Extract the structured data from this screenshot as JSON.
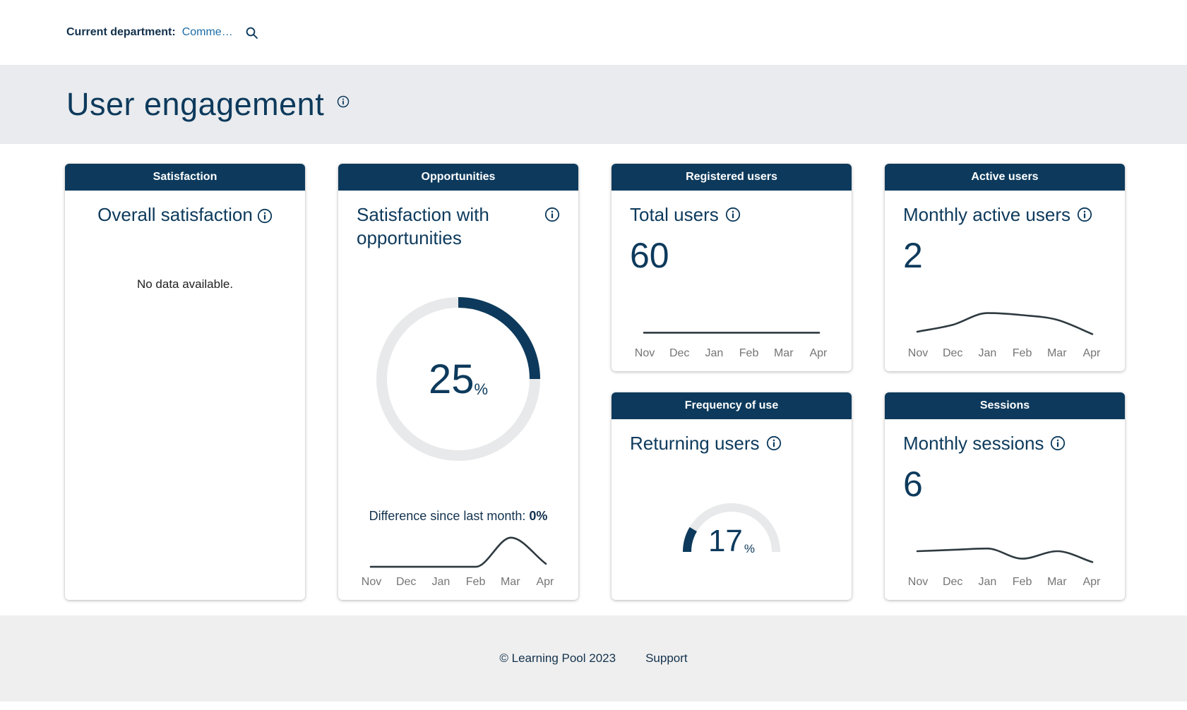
{
  "topbar": {
    "label": "Current department:",
    "department": "Comme…"
  },
  "header": {
    "title": "User engagement"
  },
  "months": [
    "Nov",
    "Dec",
    "Jan",
    "Feb",
    "Mar",
    "Apr"
  ],
  "cards": {
    "satisfaction": {
      "header": "Satisfaction",
      "title": "Overall satisfaction",
      "empty_message": "No data available."
    },
    "opportunities": {
      "header": "Opportunities",
      "title": "Satisfaction with opportunities",
      "value": "25",
      "unit": "%",
      "difference_label": "Difference since last month:",
      "difference_value": "0%"
    },
    "registered": {
      "header": "Registered users",
      "title": "Total users",
      "value": "60"
    },
    "active": {
      "header": "Active users",
      "title": "Monthly active users",
      "value": "2"
    },
    "frequency": {
      "header": "Frequency of use",
      "title": "Returning users",
      "value": "17",
      "unit": "%"
    },
    "sessions": {
      "header": "Sessions",
      "title": "Monthly sessions",
      "value": "6"
    }
  },
  "footer": {
    "copyright": "© Learning Pool 2023",
    "support": "Support"
  },
  "colors": {
    "navy": "#0d3a5c",
    "link_blue": "#1b6ca8",
    "hero_grey": "#e9ebee",
    "footer_grey": "#efefef",
    "month_grey": "#757575",
    "spark_line": "#2e3a40",
    "track_grey": "#e8e9ea"
  },
  "chart_data": [
    {
      "id": "opportunities_donut",
      "type": "pie",
      "subtype": "donut",
      "title": "Satisfaction with opportunities",
      "value_pct": 25,
      "annotation": "Difference since last month: 0%"
    },
    {
      "id": "opportunities_trend",
      "type": "line",
      "x": [
        "Nov",
        "Dec",
        "Jan",
        "Feb",
        "Mar",
        "Apr"
      ],
      "values_relative": [
        0.06,
        0.06,
        0.06,
        0.06,
        0.92,
        0.15
      ],
      "note": "sparkline, no y-axis shown; flat Nov-Feb, peak at Mar, drop to Apr"
    },
    {
      "id": "registered_trend",
      "type": "line",
      "x": [
        "Nov",
        "Dec",
        "Jan",
        "Feb",
        "Mar",
        "Apr"
      ],
      "values": [
        60,
        60,
        60,
        60,
        60,
        60
      ],
      "values_relative": [
        0.22,
        0.22,
        0.22,
        0.22,
        0.22,
        0.22
      ],
      "note": "flat line, total users constant at 60"
    },
    {
      "id": "active_trend",
      "type": "line",
      "x": [
        "Nov",
        "Dec",
        "Jan",
        "Feb",
        "Mar",
        "Apr"
      ],
      "values_relative": [
        0.25,
        0.45,
        0.8,
        0.74,
        0.6,
        0.18
      ],
      "note": "sparkline, no y-axis shown; rises to Jan peak then declines"
    },
    {
      "id": "frequency_gauge",
      "type": "gauge",
      "title": "Returning users",
      "value_pct": 17,
      "range": [
        0,
        100
      ]
    },
    {
      "id": "sessions_trend",
      "type": "line",
      "x": [
        "Nov",
        "Dec",
        "Jan",
        "Feb",
        "Mar",
        "Apr"
      ],
      "values_relative": [
        0.52,
        0.56,
        0.6,
        0.3,
        0.52,
        0.2
      ],
      "note": "sparkline, no y-axis shown; slight dip at Feb-Mar"
    }
  ]
}
